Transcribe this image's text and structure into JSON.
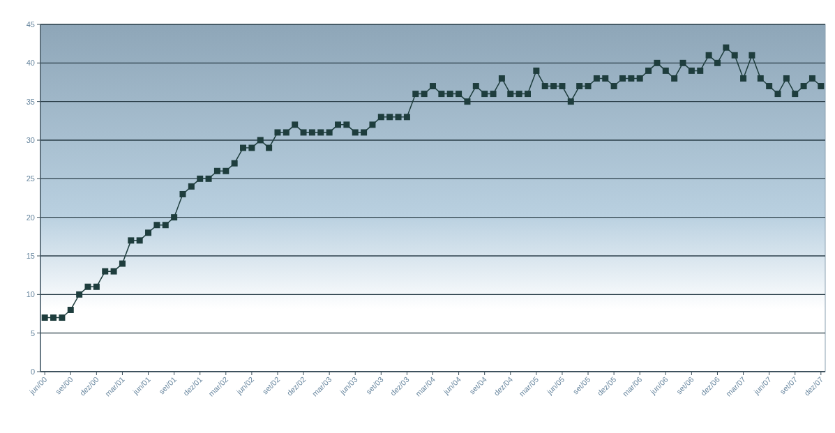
{
  "chart_data": {
    "type": "line",
    "categories": [
      "jun/00",
      null,
      null,
      "set/00",
      null,
      null,
      "dez/00",
      null,
      null,
      "mar/01",
      null,
      null,
      "jun/01",
      null,
      null,
      "set/01",
      null,
      null,
      "dez/01",
      null,
      null,
      "mar/02",
      null,
      null,
      "jun/02",
      null,
      null,
      "set/02",
      null,
      null,
      "dez/02",
      null,
      null,
      "mar/03",
      null,
      null,
      "jun/03",
      null,
      null,
      "set/03",
      null,
      null,
      "dez/03",
      null,
      null,
      "mar/04",
      null,
      null,
      "jun/04",
      null,
      null,
      "set/04",
      null,
      null,
      "dez/04",
      null,
      null,
      "mar/05",
      null,
      null,
      "jun/05",
      null,
      null,
      "set/05",
      null,
      null,
      "dez/05",
      null,
      null,
      "mar/06",
      null,
      null,
      "jun/06",
      null,
      null,
      "set/06",
      null,
      null,
      "dez/06",
      null,
      null,
      "mar/07",
      null,
      null,
      "jun/07",
      null,
      null,
      "set/07",
      null,
      null,
      "dez/07"
    ],
    "series": [
      {
        "color": "#1e3d3d",
        "values": [
          7,
          7,
          7,
          8,
          10,
          11,
          11,
          13,
          13,
          14,
          17,
          17,
          18,
          19,
          19,
          20,
          23,
          24,
          25,
          25,
          26,
          26,
          27,
          29,
          29,
          30,
          29,
          31,
          31,
          32,
          31,
          31,
          31,
          31,
          32,
          32,
          31,
          31,
          32,
          33,
          33,
          33,
          33,
          36,
          36,
          37,
          36,
          36,
          36,
          35,
          37,
          36,
          36,
          38,
          36,
          36,
          36,
          39,
          37,
          37,
          37,
          35,
          37,
          37,
          38,
          38,
          37,
          38,
          38,
          38,
          39,
          40,
          39,
          38,
          40,
          39,
          39,
          41,
          40,
          42,
          41,
          38,
          41,
          38,
          37,
          36,
          38,
          36,
          37,
          38,
          37
        ]
      }
    ],
    "ylim": [
      0,
      45
    ],
    "yticks": [
      0,
      5,
      10,
      15,
      20,
      25,
      30,
      35,
      40,
      45
    ],
    "grid": "y",
    "marker": "square",
    "line_style": "solid"
  }
}
